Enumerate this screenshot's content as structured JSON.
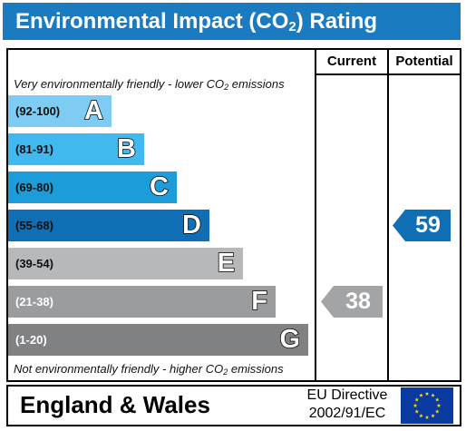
{
  "header": {
    "title_prefix": "Environmental Impact (CO",
    "title_sub": "2",
    "title_suffix": ") Rating"
  },
  "columns": {
    "current": "Current",
    "potential": "Potential"
  },
  "notes": {
    "top_prefix": "Very environmentally friendly - lower CO",
    "top_sub": "2",
    "top_suffix": " emissions",
    "bottom_prefix": "Not environmentally friendly - higher CO",
    "bottom_sub": "2",
    "bottom_suffix": " emissions"
  },
  "bands": [
    {
      "range": "(92-100)",
      "letter": "A",
      "color": "#7ecbf4",
      "text_color": "#111111"
    },
    {
      "range": "(81-91)",
      "letter": "B",
      "color": "#3fb9ee",
      "text_color": "#111111"
    },
    {
      "range": "(69-80)",
      "letter": "C",
      "color": "#1d9cda",
      "text_color": "#111111"
    },
    {
      "range": "(55-68)",
      "letter": "D",
      "color": "#0f6eb4",
      "text_color": "#111111"
    },
    {
      "range": "(39-54)",
      "letter": "E",
      "color": "#b7b8ba",
      "text_color": "#111111"
    },
    {
      "range": "(21-38)",
      "letter": "F",
      "color": "#9b9c9e",
      "text_color": "#ffffff"
    },
    {
      "range": "(1-20)",
      "letter": "G",
      "color": "#808183",
      "text_color": "#ffffff"
    }
  ],
  "ratings": {
    "current": {
      "value": "38",
      "band": "F",
      "color": "#a3a4a6"
    },
    "potential": {
      "value": "59",
      "band": "D",
      "color": "#0f6eb4"
    }
  },
  "footer": {
    "country": "England & Wales",
    "directive_line1": "EU Directive",
    "directive_line2": "2002/91/EC"
  },
  "flag": {
    "background": "#0a3aa0",
    "star_color": "#ffdd00"
  }
}
